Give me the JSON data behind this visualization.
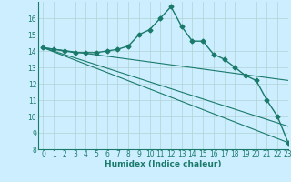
{
  "xlabel": "Humidex (Indice chaleur)",
  "bg_color": "#cceeff",
  "grid_color": "#b0d4d4",
  "line_color": "#1a7a6a",
  "xlim": [
    -0.5,
    23
  ],
  "ylim": [
    8,
    17
  ],
  "yticks": [
    8,
    9,
    10,
    11,
    12,
    13,
    14,
    15,
    16
  ],
  "xticks": [
    0,
    1,
    2,
    3,
    4,
    5,
    6,
    7,
    8,
    9,
    10,
    11,
    12,
    13,
    14,
    15,
    16,
    17,
    18,
    19,
    20,
    21,
    22,
    23
  ],
  "main_line": {
    "x": [
      0,
      1,
      2,
      3,
      4,
      5,
      6,
      7,
      8,
      9,
      10,
      11,
      12,
      13,
      14,
      15,
      16,
      17,
      18,
      19,
      20,
      21,
      22,
      23
    ],
    "y": [
      14.2,
      14.1,
      14.0,
      13.9,
      13.9,
      13.9,
      14.0,
      14.1,
      14.3,
      15.0,
      15.3,
      16.0,
      16.7,
      15.5,
      14.6,
      14.6,
      13.8,
      13.5,
      13.0,
      12.5,
      12.2,
      11.0,
      10.0,
      8.4
    ]
  },
  "straight_lines": [
    {
      "x": [
        0,
        23
      ],
      "y": [
        14.2,
        8.4
      ]
    },
    {
      "x": [
        0,
        23
      ],
      "y": [
        14.2,
        9.4
      ]
    },
    {
      "x": [
        0,
        23
      ],
      "y": [
        14.2,
        12.2
      ]
    }
  ]
}
